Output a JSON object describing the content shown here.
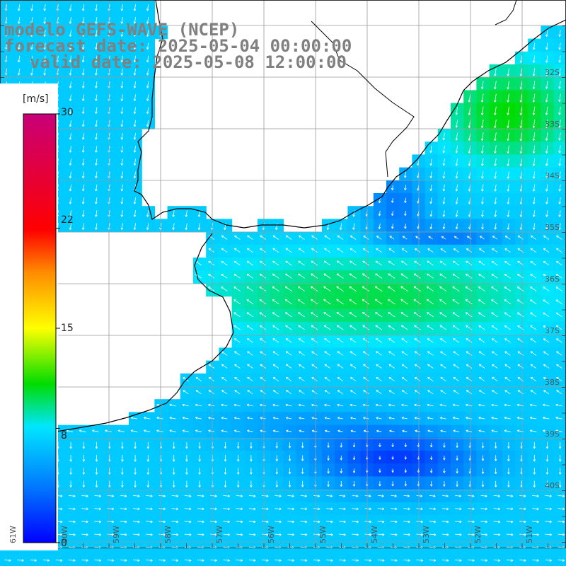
{
  "title": {
    "line1": "modelo GEFS-WAVE (NCEP)",
    "line2": "forecast date: 2025-05-04 00:00:00",
    "line3": "valid date: 2025-05-08 12:00:00"
  },
  "colorbar": {
    "unit": "[m/s]",
    "ticks": [
      "30",
      "22",
      "15",
      "8",
      "0"
    ],
    "tick_values": [
      30,
      22,
      15,
      8,
      0
    ],
    "min": 0,
    "max": 30
  },
  "lat_labels": [
    "32S",
    "33S",
    "34S",
    "35S",
    "36S",
    "37S",
    "38S",
    "39S",
    "40S"
  ],
  "lon_labels": [
    "61W",
    "60W",
    "59W",
    "58W",
    "57W",
    "56W",
    "55W",
    "54W",
    "53W",
    "52W",
    "51W"
  ],
  "colors": {
    "land": "#ffffff",
    "grid": "#9a9a9a",
    "coast": "#000000",
    "title": "#808080"
  }
}
